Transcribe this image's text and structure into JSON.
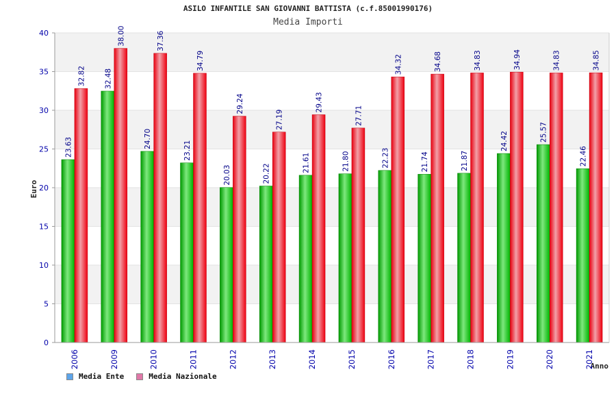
{
  "chart_data": {
    "type": "bar",
    "title": "ASILO INFANTILE SAN GIOVANNI BATTISTA (c.f.85001990176)",
    "subtitle": "Media Importi",
    "ylabel": "Euro",
    "xlabel": "Anno",
    "ylim": [
      0,
      40
    ],
    "yticks": [
      0,
      5,
      10,
      15,
      20,
      25,
      30,
      35,
      40
    ],
    "grid": true,
    "legend_position": "bottom-left",
    "categories": [
      "2006",
      "2009",
      "2010",
      "2011",
      "2012",
      "2013",
      "2014",
      "2015",
      "2016",
      "2017",
      "2018",
      "2019",
      "2020",
      "2021"
    ],
    "series": [
      {
        "name": "Media Ente",
        "color": "#00b000",
        "legend_color": "#5da5ea",
        "values": [
          23.63,
          32.48,
          24.7,
          23.21,
          20.03,
          20.22,
          21.61,
          21.8,
          22.23,
          21.74,
          21.87,
          24.42,
          25.57,
          22.46
        ],
        "labels": [
          "23.63",
          "32.48",
          "24.70",
          "23.21",
          "20.03",
          "20.22",
          "21.61",
          "21.80",
          "22.23",
          "21.74",
          "21.87",
          "24.42",
          "25.57",
          "22.46"
        ]
      },
      {
        "name": "Media Nazionale",
        "color": "#e8000f",
        "legend_color": "#e078a8",
        "values": [
          32.82,
          38.0,
          37.36,
          34.79,
          29.24,
          27.19,
          29.43,
          27.71,
          34.32,
          34.68,
          34.83,
          34.94,
          34.83,
          34.85
        ],
        "labels": [
          "32.82",
          "38.00",
          "37.36",
          "34.79",
          "29.24",
          "27.19",
          "29.43",
          "27.71",
          "34.32",
          "34.68",
          "34.83",
          "34.94",
          "34.83",
          "34.85"
        ]
      }
    ]
  }
}
